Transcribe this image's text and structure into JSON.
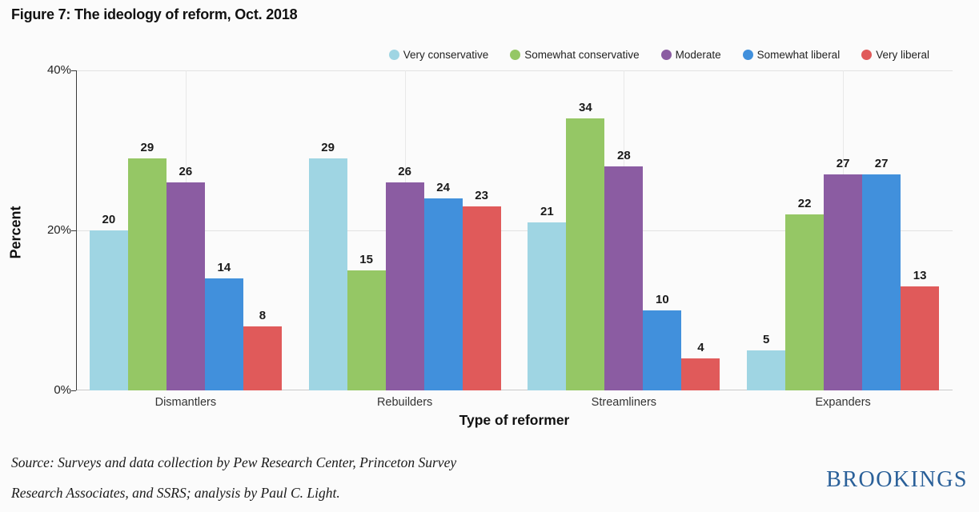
{
  "title": "Figure 7: The ideology of reform, Oct. 2018",
  "chart_data": {
    "type": "bar",
    "categories": [
      "Dismantlers",
      "Rebuilders",
      "Streamliners",
      "Expanders"
    ],
    "series": [
      {
        "name": "Very conservative",
        "color": "#9fd5e3",
        "values": [
          20,
          29,
          21,
          5
        ]
      },
      {
        "name": "Somewhat conservative",
        "color": "#95c765",
        "values": [
          29,
          15,
          34,
          22
        ]
      },
      {
        "name": "Moderate",
        "color": "#8b5ca2",
        "values": [
          26,
          26,
          28,
          27
        ]
      },
      {
        "name": "Somewhat liberal",
        "color": "#4190dc",
        "values": [
          14,
          24,
          10,
          27
        ]
      },
      {
        "name": "Very liberal",
        "color": "#e05a5a",
        "values": [
          8,
          23,
          4,
          13
        ]
      }
    ],
    "xlabel": "Type of reformer",
    "ylabel": "Percent",
    "ylim": [
      0,
      40
    ],
    "yticks": [
      {
        "value": 0,
        "label": "0%"
      },
      {
        "value": 20,
        "label": "20%"
      },
      {
        "value": 40,
        "label": "40%"
      }
    ],
    "grid": true,
    "legend_position": "top",
    "value_labels": true
  },
  "footer": {
    "source_line1": "Source: Surveys and data collection by Pew Research Center, Princeton Survey",
    "source_line2": "Research Associates, and SSRS; analysis by Paul C. Light.",
    "logo_text": "BROOKINGS"
  }
}
